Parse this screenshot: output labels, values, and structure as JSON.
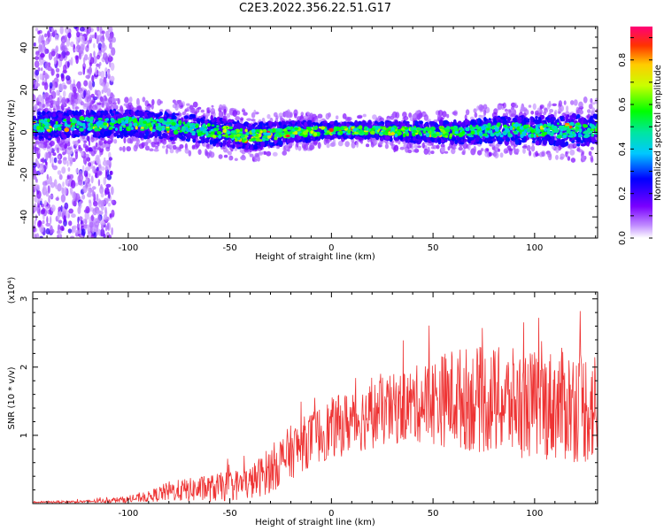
{
  "title": "C2E3.2022.356.22.51.G17",
  "chart_data": [
    {
      "type": "heatmap",
      "title": "C2E3.2022.356.22.51.G17",
      "xlabel": "Height of straight line (km)",
      "ylabel": "Frequency (Hz)",
      "xlim": [
        -147,
        131
      ],
      "ylim": [
        -50,
        50
      ],
      "x_ticks": [
        -100,
        -50,
        0,
        50,
        100
      ],
      "y_ticks": [
        -40,
        -20,
        0,
        20,
        40
      ],
      "colorbar": {
        "label": "Normalized spectral amplitude",
        "range": [
          0.0,
          0.95
        ],
        "ticks": [
          "0.0",
          "0.2",
          "0.4",
          "0.6",
          "0.8"
        ]
      },
      "ridge": {
        "x": [
          -147,
          -120,
          -100,
          -80,
          -60,
          -40,
          -20,
          0,
          20,
          40,
          60,
          80,
          100,
          120,
          131
        ],
        "center_freq": [
          3,
          4,
          4,
          3,
          1,
          -2,
          0,
          1,
          1,
          0,
          0,
          1,
          1,
          1,
          1
        ],
        "half_width": [
          5,
          5,
          5,
          5,
          5,
          5,
          4,
          3,
          3,
          4,
          4,
          5,
          5,
          6,
          6
        ]
      },
      "grid": false,
      "legend": "colorbar right"
    },
    {
      "type": "line",
      "xlabel": "Height of straight line (km)",
      "ylabel": "SNR (10 * v/v)",
      "y_scale_label": "(x10⁴)",
      "xlim": [
        -147,
        131
      ],
      "ylim": [
        0,
        3.1
      ],
      "x_ticks": [
        -100,
        -50,
        0,
        50,
        100
      ],
      "y_ticks": [
        1,
        2,
        3
      ],
      "color": "#ee3333",
      "envelope": {
        "x": [
          -147,
          -120,
          -100,
          -90,
          -80,
          -60,
          -40,
          -30,
          -20,
          -10,
          0,
          20,
          40,
          50,
          60,
          80,
          100,
          120,
          131
        ],
        "mean": [
          0.02,
          0.03,
          0.06,
          0.1,
          0.18,
          0.22,
          0.3,
          0.5,
          0.75,
          0.95,
          1.1,
          1.3,
          1.45,
          1.5,
          1.55,
          1.5,
          1.45,
          1.45,
          1.4
        ],
        "spread": [
          0.01,
          0.02,
          0.05,
          0.08,
          0.15,
          0.2,
          0.25,
          0.35,
          0.4,
          0.4,
          0.45,
          0.5,
          0.55,
          0.65,
          0.75,
          0.8,
          0.8,
          0.85,
          0.85
        ]
      },
      "grid": false
    }
  ]
}
